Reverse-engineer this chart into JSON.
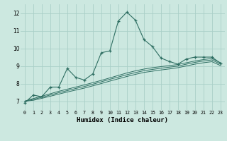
{
  "xlabel": "Humidex (Indice chaleur)",
  "ylabel": "",
  "bg_color": "#cce8e0",
  "grid_color": "#aacfc8",
  "line_color": "#2e6e62",
  "xlim": [
    -0.5,
    23.5
  ],
  "ylim": [
    6.5,
    12.5
  ],
  "xticks": [
    0,
    1,
    2,
    3,
    4,
    5,
    6,
    7,
    8,
    9,
    10,
    11,
    12,
    13,
    14,
    15,
    16,
    17,
    18,
    19,
    20,
    21,
    22,
    23
  ],
  "yticks": [
    7,
    8,
    9,
    10,
    11,
    12
  ],
  "main_line_x": [
    0,
    1,
    2,
    3,
    4,
    5,
    6,
    7,
    8,
    9,
    10,
    11,
    12,
    13,
    14,
    15,
    16,
    17,
    18,
    19,
    20,
    21,
    22,
    23
  ],
  "main_line_y": [
    6.9,
    7.35,
    7.25,
    7.8,
    7.8,
    8.85,
    8.35,
    8.2,
    8.55,
    9.75,
    9.85,
    11.55,
    12.05,
    11.6,
    10.5,
    10.1,
    9.45,
    9.25,
    9.1,
    9.4,
    9.5,
    9.5,
    9.5,
    9.15
  ],
  "smooth_line1_x": [
    0,
    1,
    2,
    3,
    4,
    5,
    6,
    7,
    8,
    9,
    10,
    11,
    12,
    13,
    14,
    15,
    16,
    17,
    18,
    19,
    20,
    21,
    22,
    23
  ],
  "smooth_line1_y": [
    7.0,
    7.15,
    7.28,
    7.42,
    7.56,
    7.68,
    7.8,
    7.92,
    8.05,
    8.18,
    8.32,
    8.46,
    8.6,
    8.72,
    8.82,
    8.9,
    8.96,
    9.02,
    9.08,
    9.18,
    9.28,
    9.36,
    9.42,
    9.18
  ],
  "smooth_line2_x": [
    0,
    1,
    2,
    3,
    4,
    5,
    6,
    7,
    8,
    9,
    10,
    11,
    12,
    13,
    14,
    15,
    16,
    17,
    18,
    19,
    20,
    21,
    22,
    23
  ],
  "smooth_line2_y": [
    7.0,
    7.1,
    7.22,
    7.35,
    7.48,
    7.6,
    7.72,
    7.83,
    7.96,
    8.1,
    8.24,
    8.37,
    8.5,
    8.62,
    8.73,
    8.8,
    8.87,
    8.93,
    8.99,
    9.1,
    9.2,
    9.28,
    9.34,
    9.1
  ],
  "smooth_line3_x": [
    0,
    1,
    2,
    3,
    4,
    5,
    6,
    7,
    8,
    9,
    10,
    11,
    12,
    13,
    14,
    15,
    16,
    17,
    18,
    19,
    20,
    21,
    22,
    23
  ],
  "smooth_line3_y": [
    7.0,
    7.05,
    7.16,
    7.28,
    7.4,
    7.52,
    7.63,
    7.74,
    7.87,
    8.0,
    8.14,
    8.27,
    8.4,
    8.52,
    8.63,
    8.7,
    8.77,
    8.83,
    8.9,
    9.0,
    9.1,
    9.18,
    9.24,
    9.02
  ]
}
